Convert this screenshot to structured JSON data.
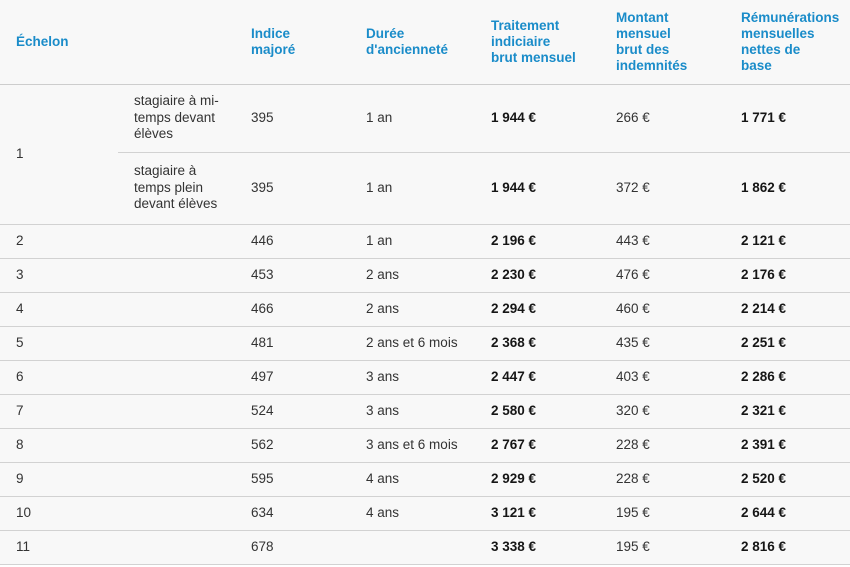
{
  "colors": {
    "header_text": "#1a8cc9",
    "row_divider": "#d2d2d2",
    "table_background": "#f8f8f8",
    "body_text": "#333333",
    "strong_text": "#161616"
  },
  "table": {
    "columns": [
      {
        "label": "Échelon"
      },
      {
        "label": "Indice majoré"
      },
      {
        "label": "Durée d'ancienneté"
      },
      {
        "label": "Traitement indiciaire brut mensuel"
      },
      {
        "label": "Montant mensuel brut des indemnités"
      },
      {
        "label": "Rémunérations mensuelles nettes de base"
      }
    ],
    "rows": [
      {
        "echelon": "1",
        "variant": "stagiaire à mi-temps devant élèves",
        "indice": "395",
        "duree": "1 an",
        "traitement": "1 944 €",
        "montant": "266 €",
        "remuneration": "1 771 €"
      },
      {
        "echelon": "1",
        "variant": "stagiaire à temps plein devant élèves",
        "indice": "395",
        "duree": "1 an",
        "traitement": "1 944 €",
        "montant": "372 €",
        "remuneration": "1 862 €"
      },
      {
        "echelon": "2",
        "variant": "",
        "indice": "446",
        "duree": "1 an",
        "traitement": "2 196 €",
        "montant": "443 €",
        "remuneration": "2 121 €"
      },
      {
        "echelon": "3",
        "variant": "",
        "indice": "453",
        "duree": "2 ans",
        "traitement": "2 230 €",
        "montant": "476 €",
        "remuneration": "2 176 €"
      },
      {
        "echelon": "4",
        "variant": "",
        "indice": "466",
        "duree": "2 ans",
        "traitement": "2 294 €",
        "montant": "460 €",
        "remuneration": "2 214 €"
      },
      {
        "echelon": "5",
        "variant": "",
        "indice": "481",
        "duree": "2 ans et 6 mois",
        "traitement": "2 368 €",
        "montant": "435 €",
        "remuneration": "2 251 €"
      },
      {
        "echelon": "6",
        "variant": "",
        "indice": "497",
        "duree": "3 ans",
        "traitement": "2 447 €",
        "montant": "403 €",
        "remuneration": "2 286 €"
      },
      {
        "echelon": "7",
        "variant": "",
        "indice": "524",
        "duree": "3 ans",
        "traitement": "2 580 €",
        "montant": "320 €",
        "remuneration": "2 321 €"
      },
      {
        "echelon": "8",
        "variant": "",
        "indice": "562",
        "duree": "3 ans et 6 mois",
        "traitement": "2 767 €",
        "montant": "228 €",
        "remuneration": "2 391 €"
      },
      {
        "echelon": "9",
        "variant": "",
        "indice": "595",
        "duree": "4 ans",
        "traitement": "2 929 €",
        "montant": "228 €",
        "remuneration": "2 520 €"
      },
      {
        "echelon": "10",
        "variant": "",
        "indice": "634",
        "duree": "4 ans",
        "traitement": "3 121 €",
        "montant": "195 €",
        "remuneration": "2 644 €"
      },
      {
        "echelon": "11",
        "variant": "",
        "indice": "678",
        "duree": "",
        "traitement": "3 338 €",
        "montant": "195 €",
        "remuneration": "2 816 €"
      }
    ]
  }
}
